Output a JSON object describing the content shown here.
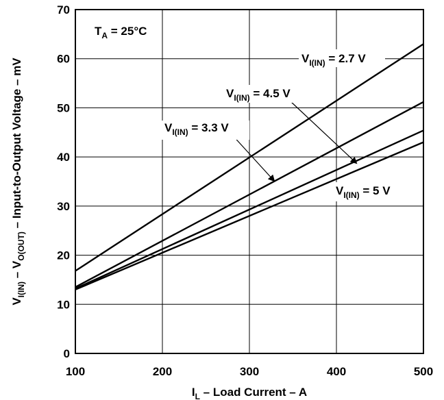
{
  "chart_data": {
    "type": "line",
    "xlabel": {
      "main": "I",
      "sub": "L",
      "rest": " – Load Current – A"
    },
    "ylabel": {
      "p1": "V",
      "s1": "I(IN)",
      "p2": " – V",
      "s2": "O(OUT)",
      "p3": " – Input-to-Output Voltage – mV"
    },
    "xlim": [
      100,
      500
    ],
    "ylim": [
      0,
      70
    ],
    "xticks": [
      "100",
      "200",
      "300",
      "400",
      "500"
    ],
    "yticks": [
      "0",
      "10",
      "20",
      "30",
      "40",
      "50",
      "60",
      "70"
    ],
    "grid": true,
    "series": [
      {
        "name": "V_I(IN) = 2.7 V",
        "x": [
          100,
          500
        ],
        "y": [
          16.8,
          63.0
        ]
      },
      {
        "name": "V_I(IN) = 4.5 V",
        "x": [
          100,
          500
        ],
        "y": [
          13.5,
          51.2
        ]
      },
      {
        "name": "V_I(IN) = 3.3 V",
        "x": [
          100,
          500
        ],
        "y": [
          13.2,
          45.4
        ]
      },
      {
        "name": "V_I(IN) = 5 V",
        "x": [
          100,
          500
        ],
        "y": [
          13.0,
          43.0
        ]
      }
    ],
    "annotations": {
      "temp": {
        "p1": "T",
        "s1": "A",
        "p2": " = 25°C"
      },
      "labels": [
        {
          "p1": "V",
          "s1": "I(IN)",
          "p2": " = 2.7 V"
        },
        {
          "p1": "V",
          "s1": "I(IN)",
          "p2": " = 4.5 V"
        },
        {
          "p1": "V",
          "s1": "I(IN)",
          "p2": " = 3.3 V"
        },
        {
          "p1": "V",
          "s1": "I(IN)",
          "p2": " = 5 V"
        }
      ]
    }
  }
}
